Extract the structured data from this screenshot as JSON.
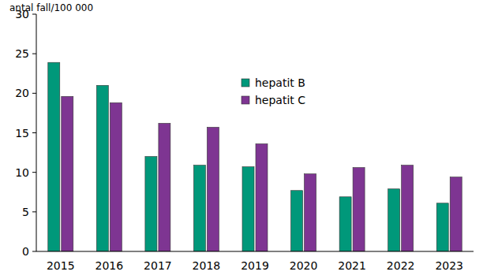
{
  "chart_data": {
    "type": "bar",
    "y_label": "antal fall/100 000",
    "categories": [
      "2015",
      "2016",
      "2017",
      "2018",
      "2019",
      "2020",
      "2021",
      "2022",
      "2023"
    ],
    "series": [
      {
        "name": "hepatit B",
        "color": "#00987a",
        "values": [
          23.9,
          21.0,
          12.0,
          10.9,
          10.7,
          7.7,
          6.9,
          7.9,
          6.1
        ]
      },
      {
        "name": "hepatit C",
        "color": "#7e3592",
        "values": [
          19.6,
          18.8,
          16.2,
          15.7,
          13.6,
          9.8,
          10.6,
          10.9,
          9.4
        ]
      }
    ],
    "ylim": [
      0,
      30
    ],
    "yticks": [
      0,
      5,
      10,
      15,
      20,
      25,
      30
    ],
    "grid": false,
    "legend": "upper center"
  }
}
